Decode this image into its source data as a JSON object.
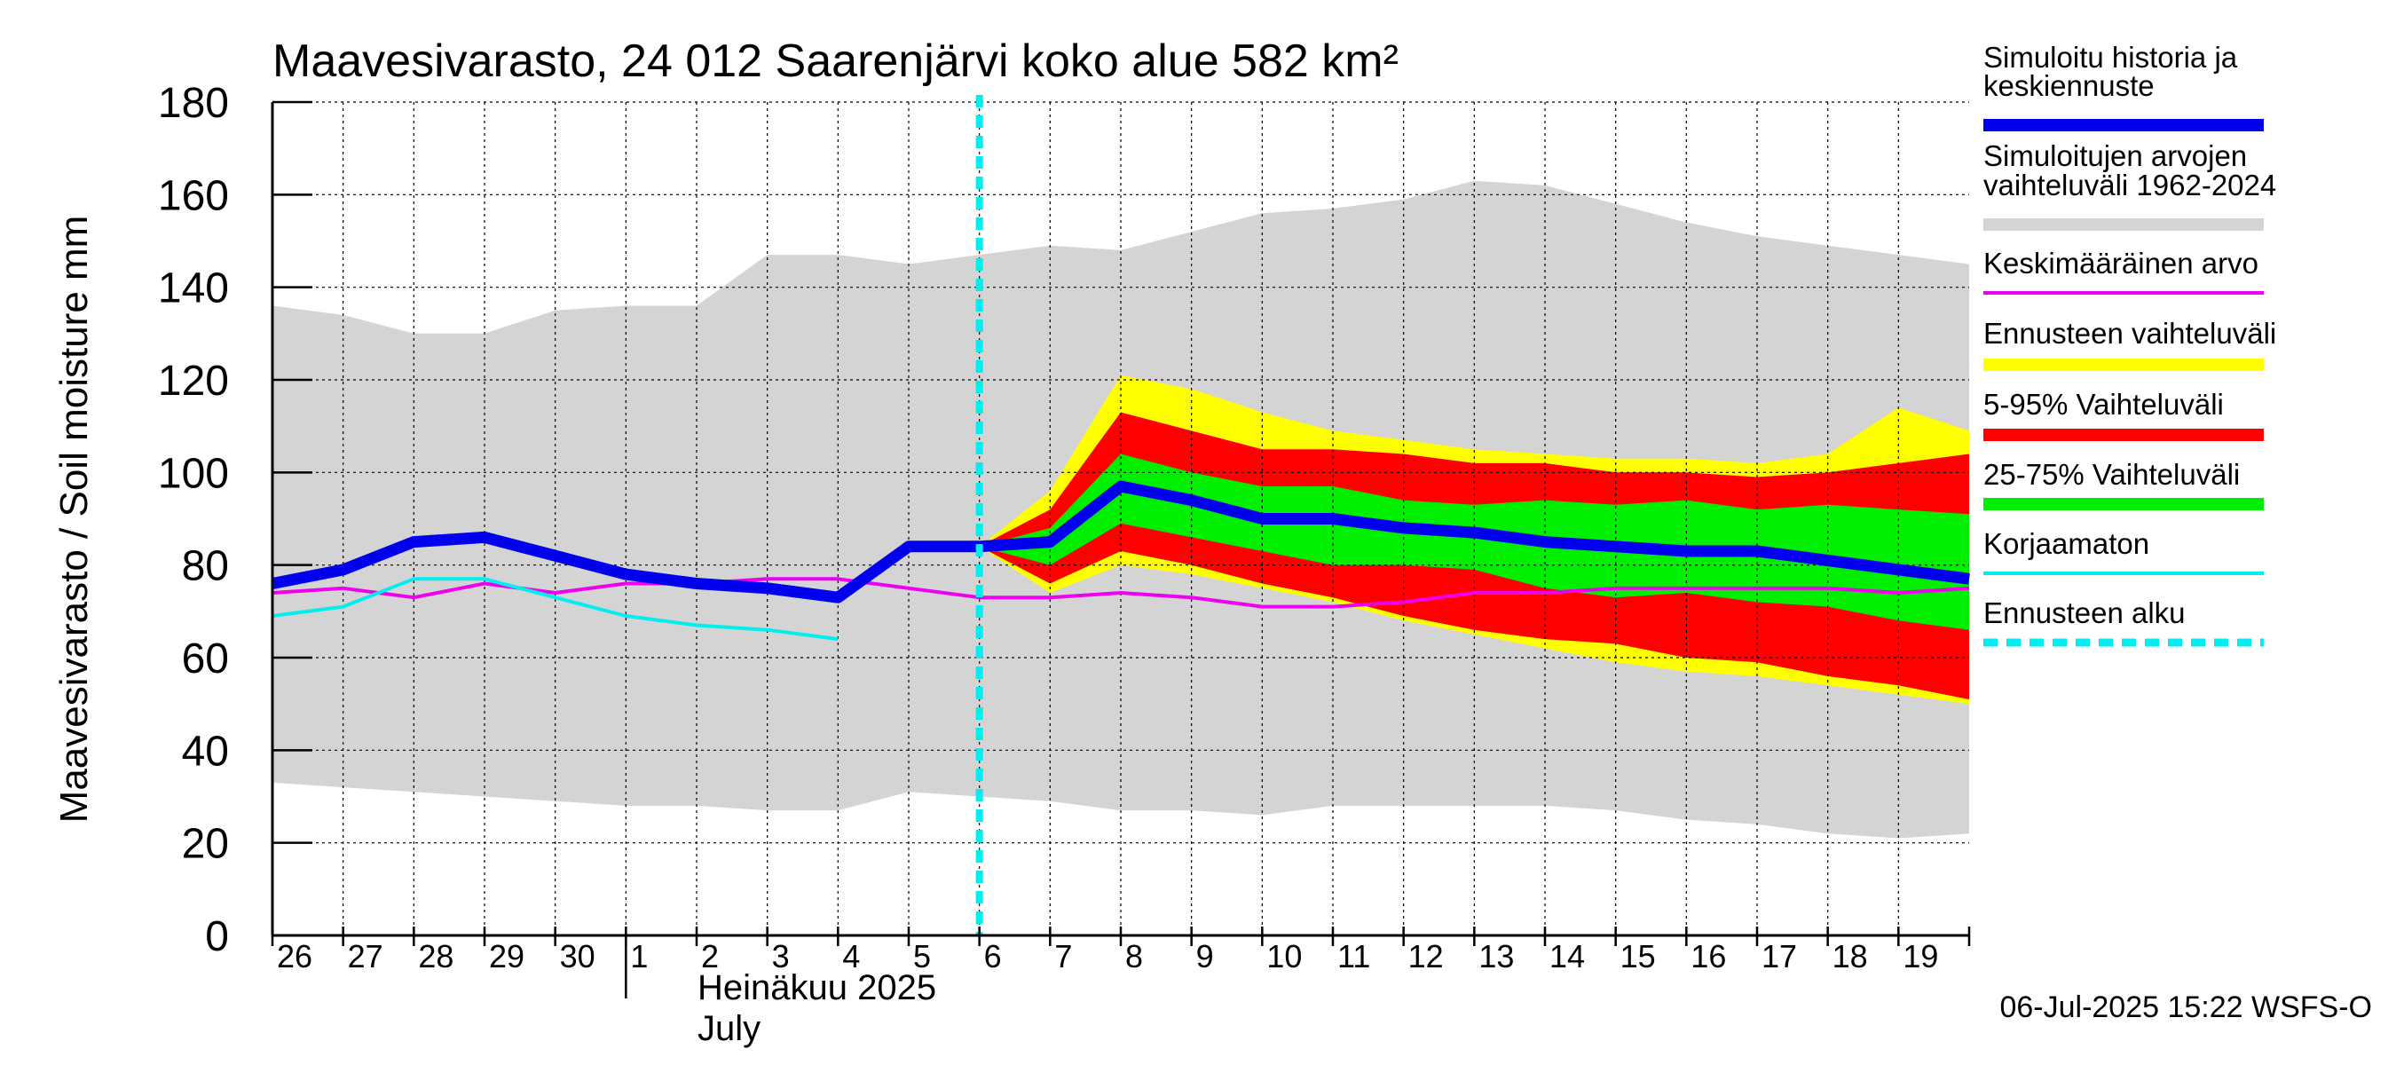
{
  "chart_data": {
    "type": "area",
    "title": "Maavesivarasto, 24 012 Saarenjärvi koko alue 582 km²",
    "ylabel": "Maavesivarasto / Soil moisture   mm",
    "month_label_fi": "Heinäkuu  2025",
    "month_label_en": "July",
    "footer": "06-Jul-2025 15:22 WSFS-O",
    "ylim": [
      0,
      180
    ],
    "yticks": [
      0,
      20,
      40,
      60,
      80,
      100,
      120,
      140,
      160,
      180
    ],
    "x_start": "2025-06-26",
    "x_end": "2025-07-20",
    "forecast_start": "2025-07-06",
    "grid": true,
    "legend_position": "right",
    "x_tick_labels": [
      {
        "date": "2025-06-26",
        "label": "26"
      },
      {
        "date": "2025-06-27",
        "label": "27"
      },
      {
        "date": "2025-06-28",
        "label": "28"
      },
      {
        "date": "2025-06-29",
        "label": "29"
      },
      {
        "date": "2025-06-30",
        "label": "30"
      },
      {
        "date": "2025-07-01",
        "label": "1"
      },
      {
        "date": "2025-07-02",
        "label": "2"
      },
      {
        "date": "2025-07-03",
        "label": "3"
      },
      {
        "date": "2025-07-04",
        "label": "4"
      },
      {
        "date": "2025-07-05",
        "label": "5"
      },
      {
        "date": "2025-07-06",
        "label": "6"
      },
      {
        "date": "2025-07-07",
        "label": "7"
      },
      {
        "date": "2025-07-08",
        "label": "8"
      },
      {
        "date": "2025-07-09",
        "label": "9"
      },
      {
        "date": "2025-07-10",
        "label": "10"
      },
      {
        "date": "2025-07-11",
        "label": "11"
      },
      {
        "date": "2025-07-12",
        "label": "12"
      },
      {
        "date": "2025-07-13",
        "label": "13"
      },
      {
        "date": "2025-07-14",
        "label": "14"
      },
      {
        "date": "2025-07-15",
        "label": "15"
      },
      {
        "date": "2025-07-16",
        "label": "16"
      },
      {
        "date": "2025-07-17",
        "label": "17"
      },
      {
        "date": "2025-07-18",
        "label": "18"
      },
      {
        "date": "2025-07-19",
        "label": "19"
      }
    ],
    "series": [
      {
        "name": "Simuloitujen arvojen vaihteluväli 1962-2024",
        "kind": "band",
        "color": "#d4d4d4",
        "x": [
          "2025-06-26",
          "2025-06-27",
          "2025-06-28",
          "2025-06-29",
          "2025-06-30",
          "2025-07-01",
          "2025-07-02",
          "2025-07-03",
          "2025-07-04",
          "2025-07-05",
          "2025-07-06",
          "2025-07-07",
          "2025-07-08",
          "2025-07-09",
          "2025-07-10",
          "2025-07-11",
          "2025-07-12",
          "2025-07-13",
          "2025-07-14",
          "2025-07-15",
          "2025-07-16",
          "2025-07-17",
          "2025-07-18",
          "2025-07-19",
          "2025-07-20"
        ],
        "upper": [
          136,
          134,
          130,
          130,
          135,
          136,
          136,
          147,
          147,
          145,
          147,
          149,
          148,
          152,
          156,
          157,
          159,
          163,
          162,
          158,
          154,
          151,
          149,
          147,
          145
        ],
        "lower": [
          33,
          32,
          31,
          30,
          29,
          28,
          28,
          27,
          27,
          31,
          30,
          29,
          27,
          27,
          26,
          28,
          28,
          28,
          28,
          27,
          25,
          24,
          22,
          21,
          22
        ]
      },
      {
        "name": "Ennusteen vaihteluväli",
        "kind": "band",
        "color": "#ffff00",
        "x": [
          "2025-07-06",
          "2025-07-07",
          "2025-07-08",
          "2025-07-09",
          "2025-07-10",
          "2025-07-11",
          "2025-07-12",
          "2025-07-13",
          "2025-07-14",
          "2025-07-15",
          "2025-07-16",
          "2025-07-17",
          "2025-07-18",
          "2025-07-19",
          "2025-07-20"
        ],
        "upper": [
          84,
          96,
          121,
          118,
          113,
          109,
          107,
          105,
          104,
          103,
          103,
          102,
          104,
          114,
          109
        ],
        "lower": [
          84,
          74,
          80,
          78,
          75,
          72,
          68,
          65,
          62,
          59,
          57,
          56,
          54,
          52,
          50
        ]
      },
      {
        "name": "5-95% Vaihteluväli",
        "kind": "band",
        "color": "#ff0000",
        "x": [
          "2025-07-06",
          "2025-07-07",
          "2025-07-08",
          "2025-07-09",
          "2025-07-10",
          "2025-07-11",
          "2025-07-12",
          "2025-07-13",
          "2025-07-14",
          "2025-07-15",
          "2025-07-16",
          "2025-07-17",
          "2025-07-18",
          "2025-07-19",
          "2025-07-20"
        ],
        "upper": [
          84,
          92,
          113,
          109,
          105,
          105,
          104,
          102,
          102,
          100,
          100,
          99,
          100,
          102,
          104
        ],
        "lower": [
          84,
          76,
          83,
          80,
          76,
          73,
          69,
          66,
          64,
          63,
          60,
          59,
          56,
          54,
          51
        ]
      },
      {
        "name": "25-75% Vaihteluväli",
        "kind": "band",
        "color": "#00ee00",
        "x": [
          "2025-07-06",
          "2025-07-07",
          "2025-07-08",
          "2025-07-09",
          "2025-07-10",
          "2025-07-11",
          "2025-07-12",
          "2025-07-13",
          "2025-07-14",
          "2025-07-15",
          "2025-07-16",
          "2025-07-17",
          "2025-07-18",
          "2025-07-19",
          "2025-07-20"
        ],
        "upper": [
          84,
          88,
          104,
          100,
          97,
          97,
          94,
          93,
          94,
          93,
          94,
          92,
          93,
          92,
          91
        ],
        "lower": [
          84,
          80,
          89,
          86,
          83,
          80,
          80,
          79,
          75,
          73,
          74,
          72,
          71,
          68,
          66
        ]
      },
      {
        "name": "Keskimääräinen arvo",
        "kind": "line",
        "color": "#ee00ee",
        "width": 4,
        "x": [
          "2025-06-26",
          "2025-06-27",
          "2025-06-28",
          "2025-06-29",
          "2025-06-30",
          "2025-07-01",
          "2025-07-02",
          "2025-07-03",
          "2025-07-04",
          "2025-07-05",
          "2025-07-06",
          "2025-07-07",
          "2025-07-08",
          "2025-07-09",
          "2025-07-10",
          "2025-07-11",
          "2025-07-12",
          "2025-07-13",
          "2025-07-14",
          "2025-07-15",
          "2025-07-16",
          "2025-07-17",
          "2025-07-18",
          "2025-07-19",
          "2025-07-20"
        ],
        "y": [
          74,
          75,
          73,
          76,
          74,
          76,
          76,
          77,
          77,
          75,
          73,
          73,
          74,
          73,
          71,
          71,
          72,
          74,
          74,
          75,
          75,
          75,
          75,
          74,
          75
        ]
      },
      {
        "name": "Korjaamaton",
        "kind": "line",
        "color": "#00eeee",
        "width": 4,
        "x": [
          "2025-06-26",
          "2025-06-27",
          "2025-06-28",
          "2025-06-29",
          "2025-06-30",
          "2025-07-01",
          "2025-07-02",
          "2025-07-03",
          "2025-07-04"
        ],
        "y": [
          69,
          71,
          77,
          77,
          73,
          69,
          67,
          66,
          64
        ]
      },
      {
        "name": "Simuloitu historia ja keskiennuste",
        "kind": "line",
        "color": "#0000ee",
        "width": 13,
        "x": [
          "2025-06-26",
          "2025-06-27",
          "2025-06-28",
          "2025-06-29",
          "2025-06-30",
          "2025-07-01",
          "2025-07-02",
          "2025-07-03",
          "2025-07-04",
          "2025-07-05",
          "2025-07-06",
          "2025-07-07",
          "2025-07-08",
          "2025-07-09",
          "2025-07-10",
          "2025-07-11",
          "2025-07-12",
          "2025-07-13",
          "2025-07-14",
          "2025-07-15",
          "2025-07-16",
          "2025-07-17",
          "2025-07-18",
          "2025-07-19",
          "2025-07-20"
        ],
        "y": [
          76,
          79,
          85,
          86,
          82,
          78,
          76,
          75,
          73,
          84,
          84,
          85,
          97,
          94,
          90,
          90,
          88,
          87,
          85,
          84,
          83,
          83,
          81,
          79,
          77
        ]
      }
    ],
    "legend": [
      {
        "label": "Simuloitu historia ja keskiennuste",
        "color": "#0000ee",
        "style": "thick"
      },
      {
        "label": "Simuloitujen arvojen vaihteluväli 1962-2024",
        "color": "#d4d4d4",
        "style": "thick"
      },
      {
        "label": "Keskimääräinen arvo",
        "color": "#ee00ee",
        "style": "thin"
      },
      {
        "label": "Ennusteen vaihteluväli",
        "color": "#ffff00",
        "style": "thick"
      },
      {
        "label": "5-95% Vaihteluväli",
        "color": "#ff0000",
        "style": "thick"
      },
      {
        "label": "25-75% Vaihteluväli",
        "color": "#00ee00",
        "style": "thick"
      },
      {
        "label": "Korjaamaton",
        "color": "#00eeee",
        "style": "thin"
      },
      {
        "label": "Ennusteen alku",
        "color": "#00eeee",
        "style": "dashed"
      }
    ]
  }
}
